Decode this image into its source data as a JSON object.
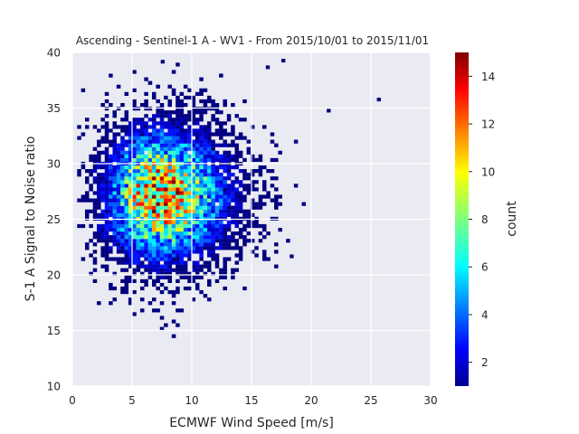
{
  "chart_data": {
    "type": "heatmap",
    "title": "Ascending - Sentinel-1 A - WV1 - From 2015/10/01 to 2015/11/01",
    "xlabel": "ECMWF Wind Speed [m/s]",
    "ylabel": "S-1 A Signal to Noise ratio",
    "xlim": [
      0,
      30
    ],
    "ylim": [
      10,
      40
    ],
    "xticks": [
      0,
      5,
      10,
      15,
      20,
      25,
      30
    ],
    "yticks": [
      10,
      15,
      20,
      25,
      30,
      35,
      40
    ],
    "grid": true,
    "colormap": "jet",
    "colorbar": {
      "label": "count",
      "range": [
        1,
        15
      ],
      "ticks": [
        2,
        4,
        6,
        8,
        10,
        12,
        14
      ]
    },
    "bin_size": [
      0.33,
      0.33
    ],
    "density_model": {
      "description": "2D histogram of SNR vs wind speed",
      "center": [
        7.0,
        27.0
      ],
      "spread": [
        2.8,
        3.8
      ],
      "peak_count": 13,
      "x_extent": [
        0.4,
        21.5
      ],
      "y_extent": [
        14.0,
        39.0
      ],
      "outliers": [
        [
          25.5,
          35.6
        ],
        [
          21.3,
          34.6
        ],
        [
          17.5,
          39.1
        ],
        [
          16.2,
          38.5
        ],
        [
          7.4,
          39.0
        ],
        [
          18.2,
          21.5
        ]
      ]
    }
  }
}
